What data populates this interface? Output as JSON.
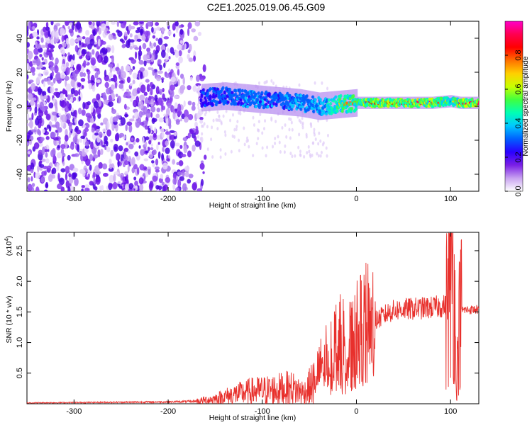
{
  "page": {
    "title": "C2E1.2025.019.06.45.G09"
  },
  "chart_data": [
    {
      "type": "heatmap",
      "xlabel": "Height of straight line (km)",
      "ylabel": "Frequency (Hz)",
      "xlim": [
        -350,
        130
      ],
      "ylim": [
        -50,
        50
      ],
      "x_ticks": [
        -300,
        -200,
        -100,
        0,
        100
      ],
      "y_ticks": [
        -40,
        -20,
        0,
        20,
        40
      ],
      "colorbar": {
        "label": "Normalized spectral amplitude",
        "range": [
          0,
          1
        ],
        "ticks": [
          "0.0",
          "0.2",
          "0.4",
          "0.6",
          "0.8"
        ],
        "colors": [
          "#ffffff",
          "#c8a2f0",
          "#7a1fe6",
          "#2a00ff",
          "#0060ff",
          "#00c8ff",
          "#00ffb4",
          "#40ff40",
          "#c8ff00",
          "#ffd000",
          "#ff7000",
          "#ff0000",
          "#ff0050",
          "#ff00c8"
        ]
      },
      "features": [
        {
          "region": "noise",
          "x_range": [
            -350,
            -170
          ],
          "freq_range": [
            -50,
            50
          ],
          "amplitude": 0.15
        },
        {
          "region": "signal",
          "x": [
            -165,
            -140,
            -120,
            -100,
            -80,
            -60,
            -40,
            -20,
            0,
            20,
            50,
            80,
            100,
            110,
            130
          ],
          "freq": [
            5,
            6,
            5,
            4,
            3,
            2,
            0,
            1,
            2,
            2,
            2,
            2,
            3,
            2,
            2
          ],
          "amplitude": [
            0.3,
            0.35,
            0.4,
            0.4,
            0.4,
            0.45,
            0.5,
            0.7,
            0.8,
            0.85,
            0.9,
            0.9,
            0.6,
            0.9,
            0.9
          ]
        }
      ]
    },
    {
      "type": "line",
      "xlabel": "Height of straight line (km)",
      "ylabel": "SNR (10 * v/v)",
      "y_multiplier": "(x10",
      "y_multiplier_exp": "4",
      "y_multiplier_close": ")",
      "xlim": [
        -350,
        130
      ],
      "ylim": [
        0,
        28000
      ],
      "x_ticks": [
        -300,
        -200,
        -100,
        0,
        100
      ],
      "y_ticks": [
        0.5,
        1.0,
        1.5,
        2.0,
        2.5
      ],
      "y_tick_labels": [
        "0.5",
        "1.0",
        "1.5",
        "2.0",
        "2.5"
      ],
      "color": "#e8302c",
      "series": [
        {
          "x": [
            -350,
            -300,
            -250,
            -200,
            -170,
            -150,
            -130,
            -110,
            -90,
            -70,
            -55,
            -45,
            -35,
            -25,
            -15,
            -5,
            5,
            15,
            25,
            35,
            45,
            60,
            80,
            95,
            100,
            103,
            106,
            110,
            130
          ],
          "y": [
            150,
            200,
            250,
            300,
            400,
            800,
            1500,
            2000,
            2200,
            2500,
            1800,
            3500,
            7000,
            9000,
            10000,
            9500,
            12000,
            13000,
            14000,
            15000,
            15400,
            15500,
            15700,
            16000,
            20000,
            27000,
            3000,
            15300,
            15400
          ]
        }
      ]
    }
  ]
}
